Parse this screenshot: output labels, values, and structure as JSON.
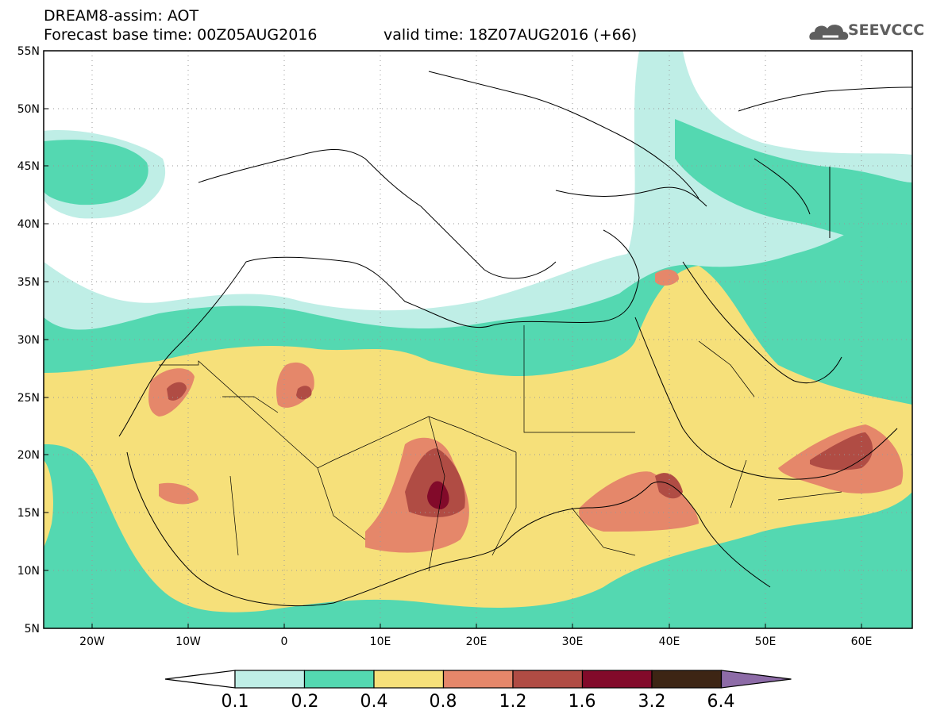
{
  "header": {
    "title": "DREAM8-assim: AOT",
    "base_time": "Forecast base time: 00Z05AUG2016",
    "valid_time": "valid time: 18Z07AUG2016 (+66)"
  },
  "logo": {
    "text": "SEEVCCC",
    "icon": "cloud-icon"
  },
  "map": {
    "lon_range": [
      -25,
      65
    ],
    "lat_range": [
      5,
      55
    ],
    "lat_ticks": [
      "5N",
      "10N",
      "15N",
      "20N",
      "25N",
      "30N",
      "35N",
      "40N",
      "45N",
      "50N",
      "55N"
    ],
    "lon_ticks": [
      "20W",
      "10W",
      "0",
      "10E",
      "20E",
      "30E",
      "40E",
      "50E",
      "60E"
    ],
    "grid": "dotted"
  },
  "colorbar": {
    "levels": [
      "0.1",
      "0.2",
      "0.4",
      "0.8",
      "1.2",
      "1.6",
      "3.2",
      "6.4"
    ],
    "colors": [
      "#bfeee6",
      "#54d8b1",
      "#f6e07a",
      "#e5876a",
      "#b04c44",
      "#820a2a",
      "#3d2514",
      "#8d6ba7"
    ],
    "low_color": "#ffffff"
  }
}
